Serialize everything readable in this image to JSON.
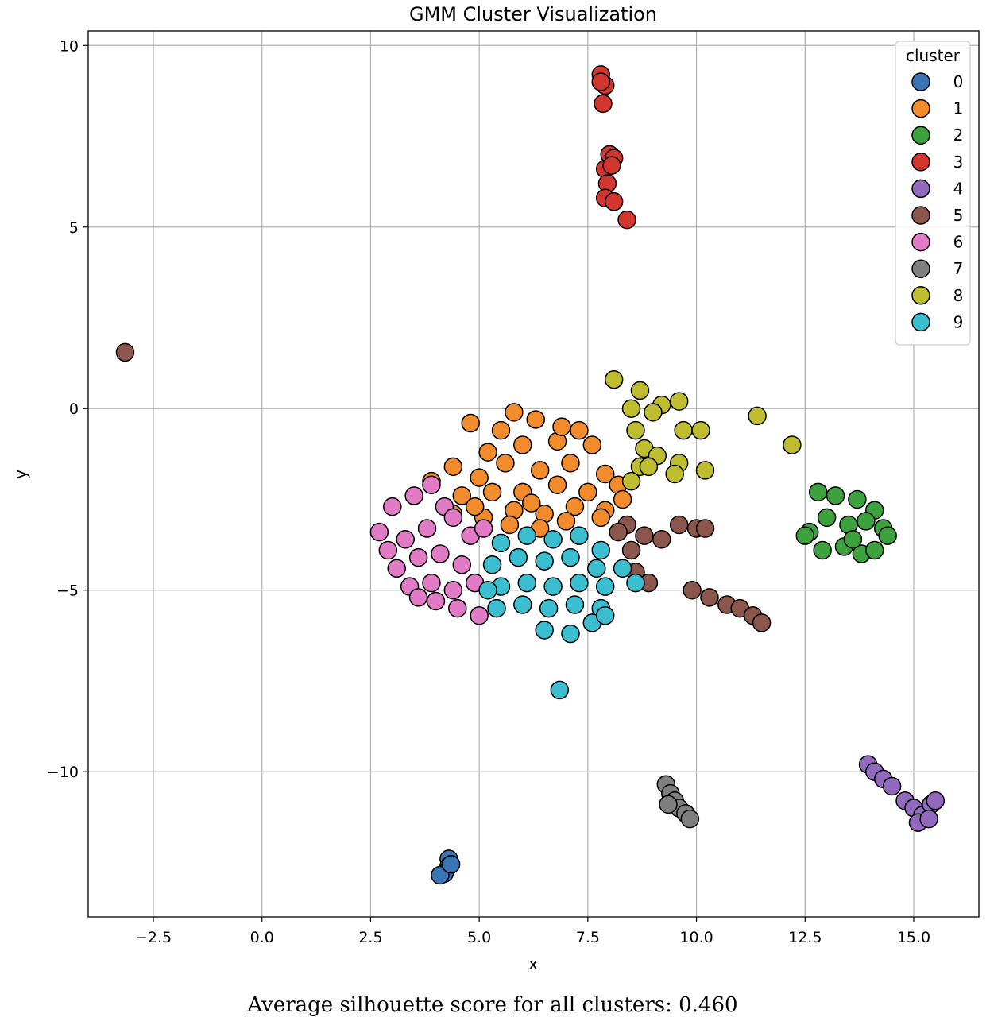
{
  "chart_data": {
    "type": "scatter",
    "title": "GMM Cluster Visualization",
    "xlabel": "x",
    "ylabel": "y",
    "xlim": [
      -4.0,
      16.5
    ],
    "ylim": [
      -14.0,
      10.4
    ],
    "xticks": [
      -2.5,
      0.0,
      2.5,
      5.0,
      7.5,
      10.0,
      12.5,
      15.0
    ],
    "xtick_labels": [
      "−2.5",
      "0.0",
      "2.5",
      "5.0",
      "7.5",
      "10.0",
      "12.5",
      "15.0"
    ],
    "yticks": [
      10,
      5,
      0,
      -5,
      -10
    ],
    "ytick_labels": [
      "10",
      "5",
      "0",
      "−5",
      "−10"
    ],
    "grid": true,
    "legend": {
      "title": "cluster",
      "placement": "top-right"
    },
    "series": [
      {
        "name": "0",
        "color": "#3a76b5",
        "points": [
          [
            4.3,
            -12.4
          ],
          [
            4.3,
            -12.6
          ],
          [
            4.2,
            -12.8
          ],
          [
            4.1,
            -12.85
          ],
          [
            4.35,
            -12.55
          ]
        ]
      },
      {
        "name": "1",
        "color": "#f28b2c",
        "points": [
          [
            5.8,
            -0.1
          ],
          [
            6.3,
            -0.3
          ],
          [
            7.3,
            -0.6
          ],
          [
            4.8,
            -0.4
          ],
          [
            5.2,
            -1.2
          ],
          [
            6.0,
            -1.0
          ],
          [
            6.8,
            -0.9
          ],
          [
            7.6,
            -1.0
          ],
          [
            4.4,
            -1.6
          ],
          [
            5.0,
            -1.9
          ],
          [
            5.6,
            -1.5
          ],
          [
            6.4,
            -1.7
          ],
          [
            7.1,
            -1.5
          ],
          [
            7.9,
            -1.8
          ],
          [
            3.9,
            -2.0
          ],
          [
            4.6,
            -2.4
          ],
          [
            5.3,
            -2.3
          ],
          [
            6.0,
            -2.3
          ],
          [
            6.8,
            -2.1
          ],
          [
            7.5,
            -2.3
          ],
          [
            8.2,
            -2.1
          ],
          [
            4.4,
            -2.9
          ],
          [
            5.1,
            -3.0
          ],
          [
            5.8,
            -2.8
          ],
          [
            6.5,
            -2.9
          ],
          [
            7.2,
            -2.7
          ],
          [
            7.9,
            -2.8
          ],
          [
            5.7,
            -3.2
          ],
          [
            6.4,
            -3.3
          ],
          [
            7.0,
            -3.1
          ],
          [
            7.8,
            -3.0
          ],
          [
            8.3,
            -2.5
          ],
          [
            5.5,
            -0.6
          ],
          [
            6.9,
            -0.5
          ],
          [
            4.9,
            -2.7
          ],
          [
            6.2,
            -2.6
          ]
        ]
      },
      {
        "name": "2",
        "color": "#3da13d",
        "points": [
          [
            12.8,
            -2.3
          ],
          [
            13.2,
            -2.4
          ],
          [
            13.7,
            -2.5
          ],
          [
            14.1,
            -2.8
          ],
          [
            12.6,
            -3.4
          ],
          [
            13.0,
            -3.0
          ],
          [
            13.5,
            -3.2
          ],
          [
            13.9,
            -3.1
          ],
          [
            14.3,
            -3.3
          ],
          [
            12.9,
            -3.9
          ],
          [
            13.4,
            -3.8
          ],
          [
            13.8,
            -4.0
          ],
          [
            14.1,
            -3.9
          ],
          [
            14.4,
            -3.5
          ],
          [
            12.5,
            -3.5
          ],
          [
            13.6,
            -3.6
          ]
        ]
      },
      {
        "name": "3",
        "color": "#d2362f",
        "points": [
          [
            7.8,
            9.2
          ],
          [
            7.9,
            8.9
          ],
          [
            7.85,
            8.4
          ],
          [
            7.8,
            9.0
          ],
          [
            8.0,
            7.0
          ],
          [
            8.1,
            6.9
          ],
          [
            7.9,
            6.6
          ],
          [
            8.05,
            6.7
          ],
          [
            7.95,
            6.2
          ],
          [
            7.9,
            5.8
          ],
          [
            8.1,
            5.7
          ],
          [
            8.4,
            5.2
          ]
        ]
      },
      {
        "name": "4",
        "color": "#9169bd",
        "points": [
          [
            13.95,
            -9.8
          ],
          [
            14.1,
            -10.0
          ],
          [
            14.3,
            -10.2
          ],
          [
            14.5,
            -10.4
          ],
          [
            14.8,
            -10.8
          ],
          [
            15.0,
            -11.0
          ],
          [
            15.2,
            -11.2
          ],
          [
            15.4,
            -10.9
          ],
          [
            15.1,
            -11.4
          ],
          [
            15.35,
            -11.3
          ],
          [
            15.5,
            -10.8
          ]
        ]
      },
      {
        "name": "5",
        "color": "#8b564c",
        "points": [
          [
            -3.15,
            1.55
          ],
          [
            8.4,
            -3.2
          ],
          [
            8.8,
            -3.5
          ],
          [
            9.2,
            -3.6
          ],
          [
            9.6,
            -3.2
          ],
          [
            10.0,
            -3.3
          ],
          [
            10.2,
            -3.3
          ],
          [
            8.5,
            -3.9
          ],
          [
            8.6,
            -4.5
          ],
          [
            8.9,
            -4.8
          ],
          [
            9.9,
            -5.0
          ],
          [
            10.3,
            -5.2
          ],
          [
            10.7,
            -5.4
          ],
          [
            11.0,
            -5.5
          ],
          [
            11.3,
            -5.7
          ],
          [
            11.5,
            -5.9
          ],
          [
            8.2,
            -3.4
          ]
        ]
      },
      {
        "name": "6",
        "color": "#e17bc5",
        "points": [
          [
            2.7,
            -3.4
          ],
          [
            3.0,
            -2.7
          ],
          [
            3.5,
            -2.4
          ],
          [
            3.9,
            -2.1
          ],
          [
            4.2,
            -2.7
          ],
          [
            2.9,
            -3.9
          ],
          [
            3.3,
            -3.6
          ],
          [
            3.8,
            -3.3
          ],
          [
            4.4,
            -3.0
          ],
          [
            4.8,
            -3.5
          ],
          [
            3.1,
            -4.4
          ],
          [
            3.6,
            -4.1
          ],
          [
            4.1,
            -4.0
          ],
          [
            4.6,
            -4.3
          ],
          [
            5.1,
            -3.3
          ],
          [
            3.4,
            -4.9
          ],
          [
            3.9,
            -4.8
          ],
          [
            4.4,
            -5.0
          ],
          [
            4.9,
            -4.8
          ],
          [
            4.0,
            -5.3
          ],
          [
            4.5,
            -5.5
          ],
          [
            5.0,
            -5.7
          ],
          [
            3.6,
            -5.2
          ]
        ]
      },
      {
        "name": "7",
        "color": "#7f7f7f",
        "points": [
          [
            9.3,
            -10.35
          ],
          [
            9.4,
            -10.6
          ],
          [
            9.5,
            -10.8
          ],
          [
            9.6,
            -11.0
          ],
          [
            9.75,
            -11.15
          ],
          [
            9.85,
            -11.3
          ],
          [
            9.35,
            -10.9
          ]
        ]
      },
      {
        "name": "8",
        "color": "#bdbd2f",
        "points": [
          [
            8.1,
            0.8
          ],
          [
            8.7,
            0.5
          ],
          [
            9.2,
            0.1
          ],
          [
            9.6,
            0.2
          ],
          [
            8.5,
            0.0
          ],
          [
            9.0,
            -0.1
          ],
          [
            9.7,
            -0.6
          ],
          [
            10.1,
            -0.6
          ],
          [
            8.6,
            -0.6
          ],
          [
            8.8,
            -1.1
          ],
          [
            9.1,
            -1.3
          ],
          [
            8.7,
            -1.6
          ],
          [
            9.6,
            -1.5
          ],
          [
            9.5,
            -1.8
          ],
          [
            10.2,
            -1.7
          ],
          [
            8.5,
            -2.0
          ],
          [
            11.4,
            -0.2
          ],
          [
            12.2,
            -1.0
          ],
          [
            8.9,
            -1.6
          ]
        ]
      },
      {
        "name": "9",
        "color": "#3bbfd0",
        "points": [
          [
            5.5,
            -3.7
          ],
          [
            6.1,
            -3.5
          ],
          [
            6.7,
            -3.6
          ],
          [
            7.3,
            -3.5
          ],
          [
            7.8,
            -3.9
          ],
          [
            5.3,
            -4.3
          ],
          [
            5.9,
            -4.1
          ],
          [
            6.5,
            -4.2
          ],
          [
            7.1,
            -4.1
          ],
          [
            7.7,
            -4.4
          ],
          [
            8.3,
            -4.4
          ],
          [
            5.5,
            -4.9
          ],
          [
            6.1,
            -4.8
          ],
          [
            6.7,
            -4.9
          ],
          [
            7.3,
            -4.8
          ],
          [
            7.9,
            -4.9
          ],
          [
            8.6,
            -4.8
          ],
          [
            5.4,
            -5.5
          ],
          [
            6.0,
            -5.4
          ],
          [
            6.6,
            -5.5
          ],
          [
            7.2,
            -5.4
          ],
          [
            7.8,
            -5.5
          ],
          [
            6.5,
            -6.1
          ],
          [
            7.1,
            -6.2
          ],
          [
            7.6,
            -5.9
          ],
          [
            7.9,
            -5.7
          ],
          [
            6.85,
            -7.75
          ],
          [
            5.2,
            -5.0
          ]
        ]
      }
    ]
  },
  "caption": "Average silhouette score for all clusters: 0.460"
}
